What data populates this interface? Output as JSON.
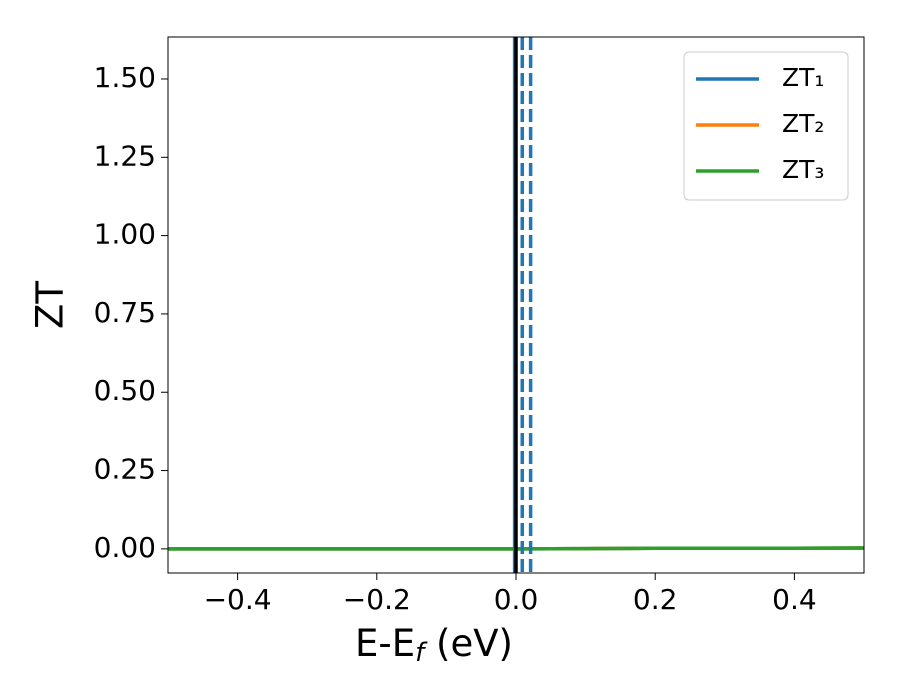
{
  "chart_data": {
    "type": "line",
    "xlabel": [
      "E-E",
      "f",
      " (eV)"
    ],
    "ylabel": "ZT",
    "x": [
      -0.5,
      -0.4,
      -0.3,
      -0.2,
      -0.1,
      0.0,
      0.1,
      0.2,
      0.3,
      0.4,
      0.5
    ],
    "series": [
      {
        "name": "ZT₁",
        "color": "#1f77b4",
        "values": [
          0.0,
          0.0,
          0.0,
          0.0,
          0.0,
          0.0,
          0.001,
          0.002,
          0.002,
          0.002,
          0.003
        ]
      },
      {
        "name": "ZT₂",
        "color": "#ff7f0e",
        "values": [
          0.0,
          0.0,
          0.0,
          0.0,
          0.0,
          0.0,
          0.001,
          0.002,
          0.002,
          0.002,
          0.003
        ]
      },
      {
        "name": "ZT₃",
        "color": "#2ca02c",
        "values": [
          0.0,
          0.0,
          0.0,
          0.0,
          0.0,
          0.0,
          0.001,
          0.002,
          0.002,
          0.002,
          0.003
        ]
      }
    ],
    "vlines": [
      {
        "x": -0.002,
        "color": "#1f77b4",
        "style": "solid"
      },
      {
        "x": 0.0,
        "color": "#000000",
        "style": "solid"
      },
      {
        "x": 0.009,
        "color": "#1f77b4",
        "style": "dashed"
      },
      {
        "x": 0.021,
        "color": "#1f77b4",
        "style": "dashed"
      }
    ],
    "xlim": [
      -0.5,
      0.5
    ],
    "ylim": [
      -0.077,
      1.634
    ],
    "xticks": [
      {
        "value": -0.4,
        "label": "−0.4"
      },
      {
        "value": -0.2,
        "label": "−0.2"
      },
      {
        "value": 0.0,
        "label": "0.0"
      },
      0.2,
      0.4
    ],
    "yticks": [
      {
        "value": 0.0,
        "label": "0.00"
      },
      0.25,
      {
        "value": 0.5,
        "label": "0.50"
      },
      0.75,
      {
        "value": 1.0,
        "label": "1.00"
      },
      1.25,
      {
        "value": 1.5,
        "label": "1.50"
      }
    ],
    "legend": "upper right",
    "grid": false
  }
}
